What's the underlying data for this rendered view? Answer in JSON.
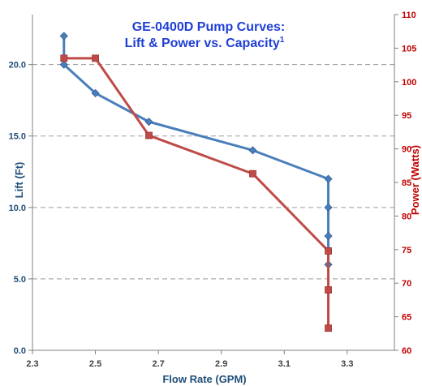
{
  "chart_data": {
    "type": "line",
    "title_line1": "GE-0400D Pump Curves:",
    "title_line2": "Lift & Power vs. Capacity",
    "title_superscript": "1",
    "xlabel": "Flow Rate (GPM)",
    "ylabel_left": "Lift (Ft)",
    "ylabel_right": "Power (Watts)",
    "xlim": [
      2.3,
      3.45
    ],
    "ylim_left": [
      0,
      23.5
    ],
    "ylim_right": [
      60,
      110
    ],
    "x_ticks": [
      "2.3",
      "2.5",
      "2.7",
      "2.9",
      "3.1",
      "3.3"
    ],
    "y_left_ticks": [
      "0.0",
      "5.0",
      "10.0",
      "15.0",
      "20.0"
    ],
    "y_right_ticks": [
      "60",
      "65",
      "70",
      "75",
      "80",
      "85",
      "90",
      "95",
      "100",
      "105",
      "110"
    ],
    "grid": "horizontal",
    "colors": {
      "lift": "#4a7ebb",
      "power": "#be4b48",
      "title": "#1f3fd6",
      "ylabel_left": "#1f4e79",
      "ylabel_right": "#c00000",
      "gridline": "#9a9a9a"
    },
    "series": [
      {
        "name": "Lift",
        "axis": "left",
        "x": [
          2.4,
          2.4,
          2.5,
          2.67,
          3.0,
          3.24,
          3.24,
          3.24,
          3.24
        ],
        "y": [
          22.0,
          20.0,
          18.0,
          16.0,
          14.0,
          12.0,
          10.0,
          8.0,
          6.0
        ]
      },
      {
        "name": "Power",
        "axis": "right",
        "x": [
          2.4,
          2.5,
          2.67,
          3.0,
          3.24,
          3.24,
          3.24
        ],
        "y": [
          103.5,
          103.5,
          92.0,
          86.3,
          74.8,
          69.0,
          63.3
        ]
      }
    ]
  }
}
